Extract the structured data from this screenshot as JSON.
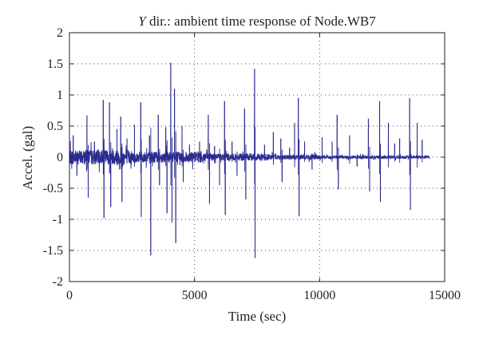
{
  "chart_data": {
    "type": "line",
    "title_prefix": "Y",
    "title_rest": " dir.: ambient time response of Node.WB7",
    "xlabel": "Time (sec)",
    "ylabel": "Accel. (gal)",
    "xlim": [
      0,
      15000
    ],
    "ylim": [
      -2,
      2
    ],
    "xticks": [
      0,
      5000,
      10000,
      15000
    ],
    "yticks": [
      -2,
      -1.5,
      -1,
      -0.5,
      0,
      0.5,
      1,
      1.5,
      2
    ],
    "grid": true,
    "line_color": "#2b2b8f",
    "signal": {
      "duration": 14400,
      "baseline_noise": [
        {
          "from": 0,
          "to": 2500,
          "amplitude": 0.12
        },
        {
          "from": 2500,
          "to": 5500,
          "amplitude": 0.09
        },
        {
          "from": 5500,
          "to": 8000,
          "amplitude": 0.06
        },
        {
          "from": 8000,
          "to": 10000,
          "amplitude": 0.04
        },
        {
          "from": 10000,
          "to": 14400,
          "amplitude": 0.025
        }
      ],
      "spikes": [
        {
          "t": 150,
          "v": 0.35
        },
        {
          "t": 300,
          "v": -0.3
        },
        {
          "t": 700,
          "v": 0.67
        },
        {
          "t": 750,
          "v": -0.65
        },
        {
          "t": 1000,
          "v": 0.25
        },
        {
          "t": 1350,
          "v": 0.92
        },
        {
          "t": 1380,
          "v": -0.98
        },
        {
          "t": 1600,
          "v": 0.88
        },
        {
          "t": 1650,
          "v": -0.8
        },
        {
          "t": 1900,
          "v": 0.45
        },
        {
          "t": 2050,
          "v": 0.65
        },
        {
          "t": 2100,
          "v": -0.72
        },
        {
          "t": 2300,
          "v": 0.3
        },
        {
          "t": 2600,
          "v": 0.52
        },
        {
          "t": 2850,
          "v": 0.88
        },
        {
          "t": 2870,
          "v": -0.96
        },
        {
          "t": 3200,
          "v": 0.35
        },
        {
          "t": 3250,
          "v": -1.58
        },
        {
          "t": 3550,
          "v": 0.68
        },
        {
          "t": 3600,
          "v": -0.45
        },
        {
          "t": 3850,
          "v": 0.48
        },
        {
          "t": 3900,
          "v": -0.9
        },
        {
          "t": 4050,
          "v": 1.52
        },
        {
          "t": 4100,
          "v": -1.05
        },
        {
          "t": 4200,
          "v": 1.1
        },
        {
          "t": 4250,
          "v": -1.38
        },
        {
          "t": 4500,
          "v": 0.5
        },
        {
          "t": 4550,
          "v": -0.4
        },
        {
          "t": 4800,
          "v": 0.2
        },
        {
          "t": 5200,
          "v": 0.25
        },
        {
          "t": 5550,
          "v": 0.68
        },
        {
          "t": 5600,
          "v": -0.75
        },
        {
          "t": 5800,
          "v": 0.18
        },
        {
          "t": 6000,
          "v": -0.45
        },
        {
          "t": 6200,
          "v": 0.9
        },
        {
          "t": 6230,
          "v": -0.93
        },
        {
          "t": 6500,
          "v": 0.25
        },
        {
          "t": 6700,
          "v": -0.3
        },
        {
          "t": 7000,
          "v": 0.78
        },
        {
          "t": 7050,
          "v": -0.68
        },
        {
          "t": 7400,
          "v": 1.42
        },
        {
          "t": 7420,
          "v": -1.62
        },
        {
          "t": 7800,
          "v": 0.2
        },
        {
          "t": 8150,
          "v": 0.4
        },
        {
          "t": 8450,
          "v": 0.3
        },
        {
          "t": 8500,
          "v": -0.4
        },
        {
          "t": 8800,
          "v": 0.15
        },
        {
          "t": 9000,
          "v": 0.55
        },
        {
          "t": 9150,
          "v": 0.95
        },
        {
          "t": 9180,
          "v": -0.95
        },
        {
          "t": 9400,
          "v": 0.25
        },
        {
          "t": 9700,
          "v": -0.2
        },
        {
          "t": 10100,
          "v": 0.32
        },
        {
          "t": 10500,
          "v": 0.25
        },
        {
          "t": 10700,
          "v": 0.68
        },
        {
          "t": 10750,
          "v": -0.52
        },
        {
          "t": 11200,
          "v": 0.35
        },
        {
          "t": 11500,
          "v": -0.15
        },
        {
          "t": 11950,
          "v": 0.62
        },
        {
          "t": 12000,
          "v": -0.55
        },
        {
          "t": 12400,
          "v": 0.9
        },
        {
          "t": 12430,
          "v": -0.72
        },
        {
          "t": 12750,
          "v": 0.55
        },
        {
          "t": 13000,
          "v": 0.22
        },
        {
          "t": 13200,
          "v": 0.3
        },
        {
          "t": 13600,
          "v": 0.95
        },
        {
          "t": 13630,
          "v": -0.85
        },
        {
          "t": 13900,
          "v": 0.55
        },
        {
          "t": 14100,
          "v": 0.28
        }
      ]
    }
  }
}
